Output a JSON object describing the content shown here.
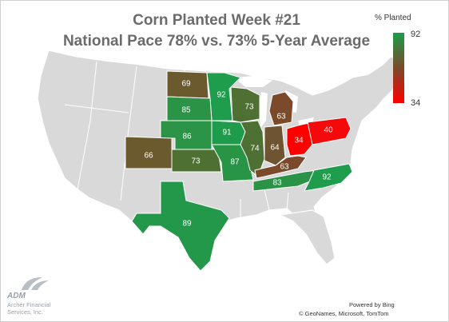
{
  "title_line1": "Corn Planted Week #21",
  "title_line2": "National Pace 78% vs. 73% 5-Year Average",
  "legend": {
    "title": "% Planted",
    "max": "92",
    "min": "34",
    "color_max": "#1d9c4a",
    "color_mid": "#7a4a2a",
    "color_min": "#ff0000"
  },
  "logo": {
    "brand": "ADM",
    "line1": "Archer Financial",
    "line2": "Services, Inc."
  },
  "credits": {
    "line1": "Powered by Bing",
    "line2": "© GeoNames, Microsoft, TomTom"
  },
  "states": [
    {
      "label": "69",
      "value": 69,
      "color": "#6b5a2e"
    },
    {
      "label": "92",
      "value": 92,
      "color": "#1e9d4c"
    },
    {
      "label": "85",
      "value": 85,
      "color": "#2a9346"
    },
    {
      "label": "73",
      "value": 73,
      "color": "#4f7033"
    },
    {
      "label": "63",
      "value": 63,
      "color": "#7a4a2a"
    },
    {
      "label": "91",
      "value": 91,
      "color": "#1f9c4b"
    },
    {
      "label": "86",
      "value": 86,
      "color": "#2b9446"
    },
    {
      "label": "34",
      "value": 34,
      "color": "#ff0000"
    },
    {
      "label": "40",
      "value": 40,
      "color": "#f40a0a"
    },
    {
      "label": "66",
      "value": 66,
      "color": "#6b5a2e"
    },
    {
      "label": "73",
      "value": 73,
      "color": "#4f7033"
    },
    {
      "label": "87",
      "value": 87,
      "color": "#289446"
    },
    {
      "label": "74",
      "value": 74,
      "color": "#4f7033"
    },
    {
      "label": "64",
      "value": 64,
      "color": "#6e5430"
    },
    {
      "label": "63",
      "value": 63,
      "color": "#7a4a2a"
    },
    {
      "label": "83",
      "value": 83,
      "color": "#2a9346"
    },
    {
      "label": "92",
      "value": 92,
      "color": "#1e9d4c"
    },
    {
      "label": "89",
      "value": 89,
      "color": "#24984a"
    }
  ]
}
